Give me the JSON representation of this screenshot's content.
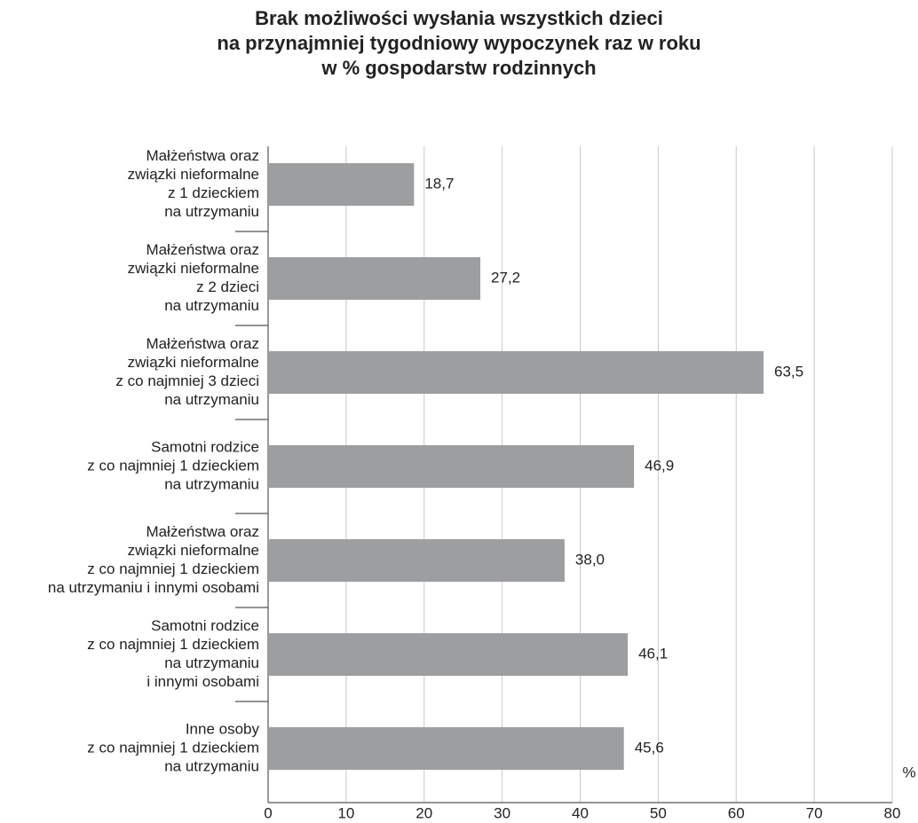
{
  "chart_data": {
    "type": "barh",
    "title": [
      "Brak możliwości wysłania wszystkich dzieci",
      "na przynajmniej tygodniowy wypoczynek raz w roku",
      "w % gospodarstw rodzinnych"
    ],
    "categories": [
      [
        "Małżeństwa oraz",
        "związki nieformalne",
        "z 1 dzieckiem",
        "na utrzymaniu"
      ],
      [
        "Małżeństwa oraz",
        "związki nieformalne",
        "z 2 dzieci",
        "na utrzymaniu"
      ],
      [
        "Małżeństwa oraz",
        "związki nieformalne",
        "z co najmniej 3 dzieci",
        "na utrzymaniu"
      ],
      [
        "Samotni rodzice",
        "z co najmniej 1 dzieckiem",
        "na utrzymaniu"
      ],
      [
        "Małżeństwa oraz",
        "związki nieformalne",
        "z co najmniej 1 dzieckiem",
        "na utrzymaniu i innymi osobami"
      ],
      [
        "Samotni rodzice",
        "z co najmniej 1 dzieckiem",
        "na utrzymaniu",
        "i innymi osobami"
      ],
      [
        "Inne osoby",
        "z co najmniej 1 dzieckiem",
        "na utrzymaniu"
      ]
    ],
    "values": [
      18.7,
      27.2,
      63.5,
      46.9,
      38.0,
      46.1,
      45.6
    ],
    "value_labels": [
      "18,7",
      "27,2",
      "63,5",
      "46,9",
      "38,0",
      "46,1",
      "45,6"
    ],
    "color": "#9d9ea0",
    "xlabel": "%",
    "xlim": [
      0,
      80
    ],
    "xticks": [
      0,
      10,
      20,
      30,
      40,
      50,
      60,
      70,
      80
    ],
    "grid": true
  }
}
